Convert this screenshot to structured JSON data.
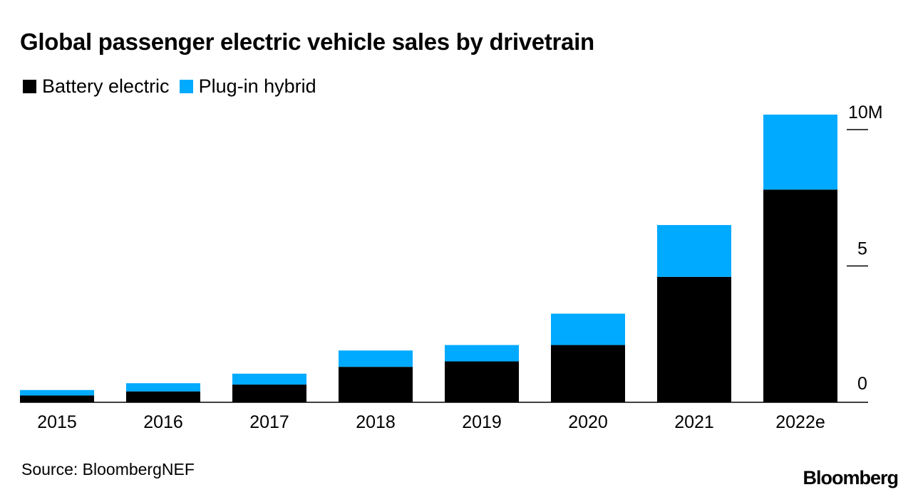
{
  "colors": {
    "battery_electric": "#000000",
    "plug_in_hybrid": "#00aaff",
    "axis": "#000000"
  },
  "chart_data": {
    "type": "bar",
    "stacked": true,
    "title": "Global passenger electric vehicle sales by drivetrain",
    "categories": [
      "2015",
      "2016",
      "2017",
      "2018",
      "2019",
      "2020",
      "2021",
      "2022e"
    ],
    "series": [
      {
        "name": "Battery electric",
        "color": "#000000",
        "values": [
          0.25,
          0.4,
          0.65,
          1.3,
          1.5,
          2.1,
          4.6,
          7.8
        ]
      },
      {
        "name": "Plug-in hybrid",
        "color": "#00aaff",
        "values": [
          0.2,
          0.3,
          0.4,
          0.6,
          0.6,
          1.15,
          1.9,
          2.75
        ]
      }
    ],
    "ylim": [
      0,
      10.5
    ],
    "y_ticks": [
      {
        "value": 0,
        "label": "0"
      },
      {
        "value": 5,
        "label": "5"
      },
      {
        "value": 10,
        "label": "10M"
      }
    ],
    "y_axis_side": "right",
    "grid": false,
    "legend_position": "top-left",
    "xlabel": "",
    "ylabel": ""
  },
  "footer": {
    "source": "Source: BloombergNEF",
    "brand": "Bloomberg"
  }
}
